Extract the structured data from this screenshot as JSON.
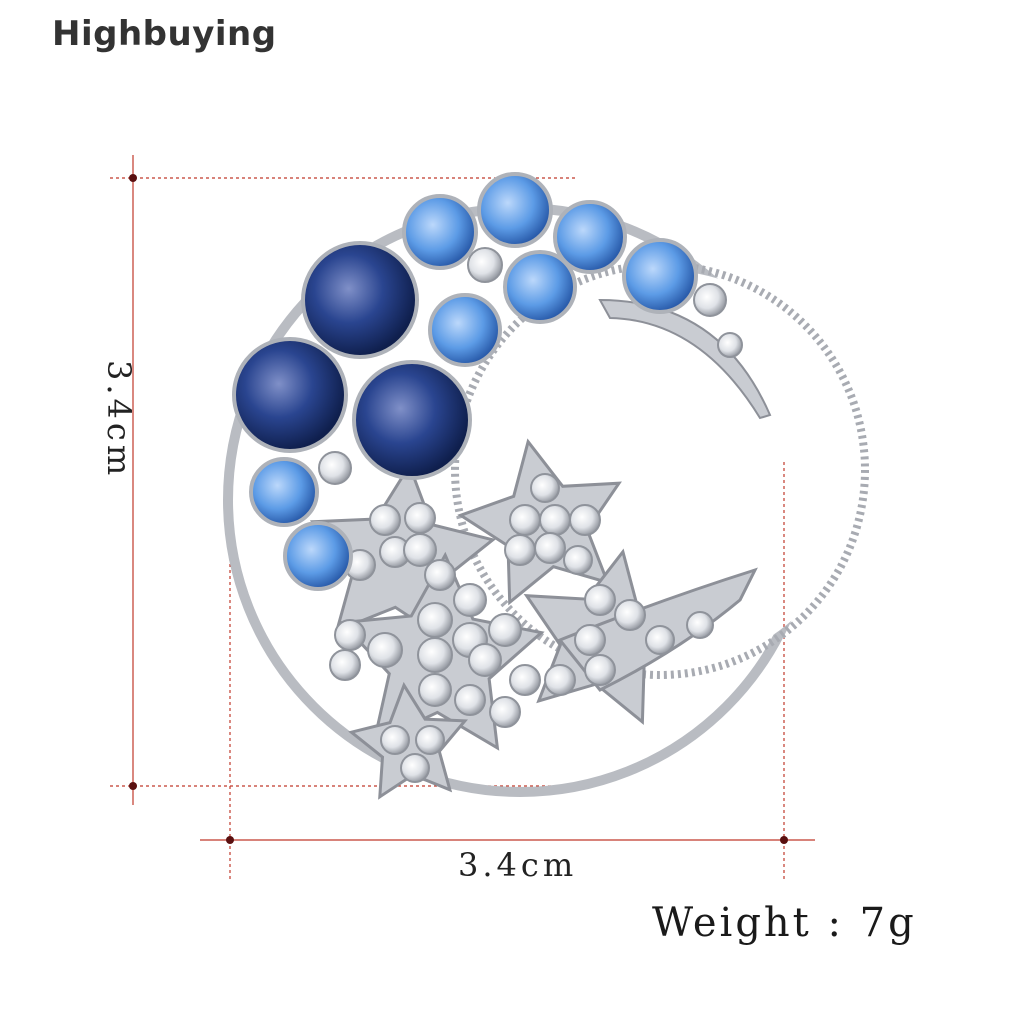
{
  "brand": {
    "name": "Highbuying"
  },
  "product": {
    "height_label": "3.4cm",
    "width_label": "3.4cm",
    "weight_label": "Weight : 7g"
  },
  "colors": {
    "dimension_line": "#c0392b",
    "dark_gem": "#1f3a7a",
    "light_gem": "#4f8fe0",
    "clear_gem": "#e6e8ec",
    "metal": "#b9bcc2"
  }
}
